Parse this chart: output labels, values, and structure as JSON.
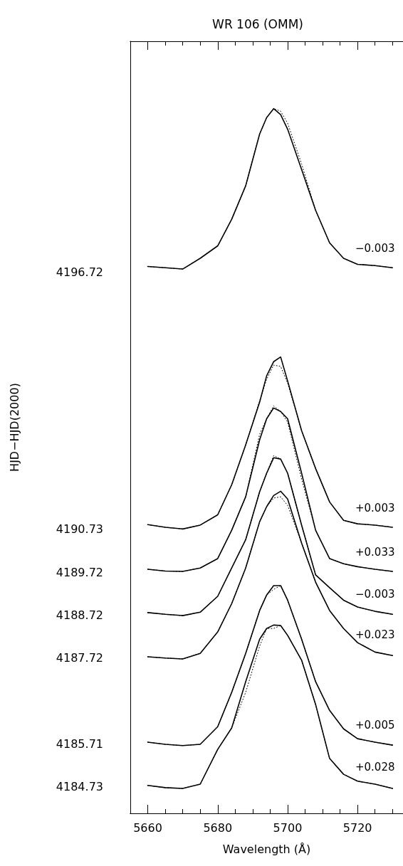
{
  "chart_data": {
    "type": "line",
    "title": "WR 106 (OMM)",
    "xlabel": "Wavelength (Å)",
    "ylabel": "HJD−HJD(2000)",
    "x": [
      5660,
      5665,
      5670,
      5675,
      5680,
      5684,
      5688,
      5692,
      5694,
      5696,
      5698,
      5700,
      5704,
      5708,
      5712,
      5716,
      5720,
      5725,
      5730
    ],
    "series": [
      {
        "color": "#000000",
        "line_style": "solid",
        "values": [
          4196.85,
          4196.82,
          4196.79,
          4197.04,
          4197.33,
          4197.95,
          4198.73,
          4199.94,
          4200.32,
          4200.53,
          4200.39,
          4200.05,
          4199.11,
          4198.16,
          4197.4,
          4197.04,
          4196.9,
          4196.87,
          4196.82
        ]
      },
      {
        "color": "#000000",
        "line_style": "dotted",
        "values": [
          4196.85,
          4196.82,
          4196.79,
          4197.04,
          4197.33,
          4197.95,
          4198.73,
          4199.94,
          4200.32,
          4200.53,
          4200.47,
          4200.19,
          4199.24,
          4198.16,
          4197.4,
          4197.04,
          4196.9,
          4196.87,
          4196.82
        ]
      },
      {
        "color": "#000000",
        "line_style": "solid",
        "values": [
          4190.83,
          4190.77,
          4190.73,
          4190.82,
          4191.06,
          4191.76,
          4192.69,
          4193.69,
          4194.3,
          4194.63,
          4194.74,
          4194.18,
          4193.02,
          4192.14,
          4191.36,
          4190.93,
          4190.85,
          4190.82,
          4190.77
        ]
      },
      {
        "color": "#000000",
        "line_style": "dotted",
        "values": [
          4190.83,
          4190.77,
          4190.73,
          4190.82,
          4191.06,
          4191.76,
          4192.69,
          4193.72,
          4194.22,
          4194.55,
          4194.52,
          4194.13,
          4193.02,
          4192.14,
          4191.36,
          4190.93,
          4190.85,
          4190.82,
          4190.77
        ]
      },
      {
        "color": "#000000",
        "line_style": "solid",
        "values": [
          4189.79,
          4189.75,
          4189.74,
          4189.82,
          4190.04,
          4190.7,
          4191.48,
          4192.81,
          4193.3,
          4193.55,
          4193.47,
          4193.3,
          4192.03,
          4190.7,
          4190.04,
          4189.92,
          4189.85,
          4189.79,
          4189.74
        ]
      },
      {
        "color": "#000000",
        "line_style": "dotted",
        "values": [
          4189.79,
          4189.75,
          4189.74,
          4189.82,
          4190.04,
          4190.7,
          4191.48,
          4192.94,
          4193.3,
          4193.6,
          4193.47,
          4193.22,
          4191.89,
          4190.7,
          4190.04,
          4189.92,
          4189.85,
          4189.79,
          4189.74
        ]
      },
      {
        "color": "#000000",
        "line_style": "solid",
        "values": [
          4188.78,
          4188.74,
          4188.71,
          4188.79,
          4189.16,
          4189.82,
          4190.48,
          4191.6,
          4192.03,
          4192.39,
          4192.36,
          4192.03,
          4190.82,
          4189.66,
          4189.36,
          4189.07,
          4188.91,
          4188.81,
          4188.74
        ]
      },
      {
        "color": "#000000",
        "line_style": "dotted",
        "values": [
          4188.78,
          4188.74,
          4188.71,
          4188.79,
          4189.16,
          4189.82,
          4190.48,
          4191.6,
          4192.03,
          4192.44,
          4192.36,
          4192.03,
          4190.82,
          4189.66,
          4189.36,
          4189.07,
          4188.91,
          4188.81,
          4188.74
        ]
      },
      {
        "color": "#000000",
        "line_style": "solid",
        "values": [
          4187.75,
          4187.72,
          4187.7,
          4187.83,
          4188.33,
          4188.99,
          4189.82,
          4190.9,
          4191.25,
          4191.51,
          4191.61,
          4191.43,
          4190.4,
          4189.49,
          4188.83,
          4188.41,
          4188.08,
          4187.86,
          4187.78
        ]
      },
      {
        "color": "#000000",
        "line_style": "dotted",
        "values": [
          4187.75,
          4187.72,
          4187.7,
          4187.83,
          4188.33,
          4188.99,
          4189.82,
          4190.9,
          4191.25,
          4191.45,
          4191.48,
          4191.28,
          4190.4,
          4189.49,
          4188.83,
          4188.41,
          4188.08,
          4187.86,
          4187.78
        ]
      },
      {
        "color": "#000000",
        "line_style": "solid",
        "values": [
          4185.76,
          4185.71,
          4185.68,
          4185.71,
          4186.12,
          4186.92,
          4187.83,
          4188.83,
          4189.19,
          4189.41,
          4189.41,
          4189.07,
          4188.16,
          4187.17,
          4186.5,
          4186.07,
          4185.84,
          4185.76,
          4185.69
        ]
      },
      {
        "color": "#000000",
        "line_style": "dotted",
        "values": [
          4185.76,
          4185.71,
          4185.68,
          4185.71,
          4186.12,
          4186.92,
          4187.83,
          4188.83,
          4189.19,
          4189.32,
          4189.41,
          4189.07,
          4188.16,
          4187.17,
          4186.5,
          4186.07,
          4185.84,
          4185.76,
          4185.69
        ]
      },
      {
        "color": "#000000",
        "line_style": "solid",
        "values": [
          4184.75,
          4184.7,
          4184.68,
          4184.78,
          4185.59,
          4186.09,
          4187.17,
          4188.16,
          4188.41,
          4188.49,
          4188.48,
          4188.25,
          4187.67,
          4186.64,
          4185.38,
          4185.01,
          4184.85,
          4184.78,
          4184.68
        ]
      },
      {
        "color": "#000000",
        "line_style": "dotted",
        "values": [
          4184.75,
          4184.7,
          4184.68,
          4184.78,
          4185.59,
          4186.09,
          4186.92,
          4188.0,
          4188.41,
          4188.41,
          4188.48,
          4188.25,
          4187.67,
          4186.64,
          4185.38,
          4185.01,
          4184.85,
          4184.78,
          4184.68
        ]
      }
    ],
    "annotations": [
      "−0.003",
      "+0.003",
      "+0.033",
      "−0.003",
      "+0.023",
      "+0.005",
      "+0.028"
    ],
    "xlim": [
      5655,
      5733
    ],
    "xticks": [
      5660,
      {
        "value": 5665,
        "label": null
      },
      {
        "value": 5670,
        "label": null
      },
      {
        "value": 5675,
        "label": null
      },
      5680,
      {
        "value": 5685,
        "label": null
      },
      {
        "value": 5690,
        "label": null
      },
      {
        "value": 5695,
        "label": null
      },
      5700,
      {
        "value": 5705,
        "label": null
      },
      {
        "value": 5710,
        "label": null
      },
      {
        "value": 5715,
        "label": null
      },
      5720,
      {
        "value": 5725,
        "label": null
      },
      {
        "value": 5730,
        "label": null
      }
    ],
    "ylim": [
      4184.1,
      4202.1
    ],
    "yticks": [
      4184.73,
      4185.71,
      4187.72,
      4188.72,
      4189.72,
      4190.73,
      4196.72
    ],
    "grid": false,
    "marker": "none"
  }
}
